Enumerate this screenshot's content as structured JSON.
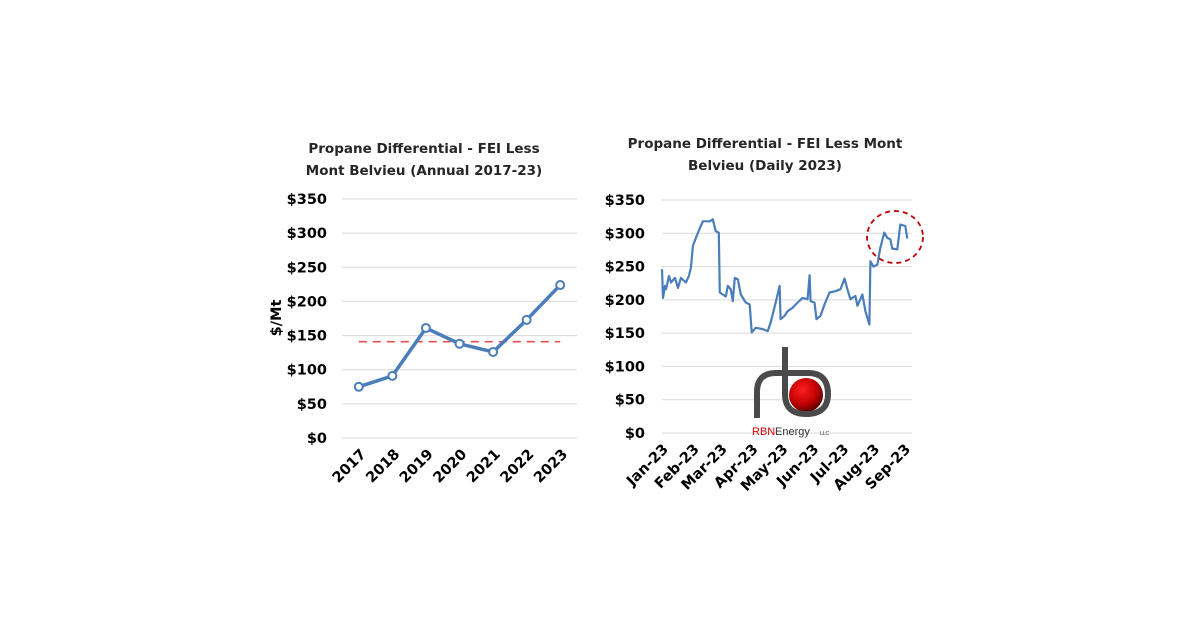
{
  "chart_data": [
    {
      "type": "line",
      "title_lines": [
        "Propane Differential - FEI Less",
        "Mont Belvieu (Annual 2017-23)"
      ],
      "xlabel": "",
      "ylabel": "$/Mt",
      "categories": [
        "2017",
        "2018",
        "2019",
        "2020",
        "2021",
        "2022",
        "2023"
      ],
      "values": [
        75,
        91,
        161,
        138,
        126,
        173,
        224
      ],
      "reference_line": {
        "value": 141,
        "style": "dashed",
        "color": "#e05050"
      },
      "ylim": [
        0,
        350
      ],
      "yticks": [
        "$0",
        "$50",
        "$100",
        "$150",
        "$200",
        "$250",
        "$300",
        "$350"
      ],
      "grid": true,
      "line_color": "#4a7ebb",
      "markers": "hollow-circle"
    },
    {
      "type": "line",
      "title_lines": [
        "Propane Differential - FEI Less Mont",
        "Belvieu (Daily 2023)"
      ],
      "xlabel": "",
      "ylabel": "",
      "ylim": [
        0,
        350
      ],
      "yticks": [
        "$0",
        "$50",
        "$100",
        "$150",
        "$200",
        "$250",
        "$300",
        "$350"
      ],
      "xticks": [
        "Jan-23",
        "Feb-23",
        "Mar-23",
        "Apr-23",
        "May-23",
        "Jun-23",
        "Jul-23",
        "Aug-23",
        "Sep-23"
      ],
      "grid": true,
      "line_color": "#4a7ebb",
      "annotation": {
        "type": "dashed-ellipse",
        "color": "#c00000",
        "around": "Aug-Sep 2023 peak"
      },
      "x": [
        "2023-01-01",
        "2023-01-02",
        "2023-01-04",
        "2023-01-05",
        "2023-01-08",
        "2023-01-10",
        "2023-01-14",
        "2023-01-17",
        "2023-01-20",
        "2023-01-25",
        "2023-01-28",
        "2023-01-30",
        "2023-02-01",
        "2023-02-04",
        "2023-02-08",
        "2023-02-11",
        "2023-02-18",
        "2023-02-21",
        "2023-02-24",
        "2023-02-27",
        "2023-02-28",
        "2023-03-06",
        "2023-03-08",
        "2023-03-11",
        "2023-03-13",
        "2023-03-15",
        "2023-03-18",
        "2023-03-21",
        "2023-03-26",
        "2023-03-30",
        "2023-04-01",
        "2023-04-05",
        "2023-04-12",
        "2023-04-17",
        "2023-04-20",
        "2023-04-25",
        "2023-04-29",
        "2023-04-30",
        "2023-05-04",
        "2023-05-07",
        "2023-05-12",
        "2023-05-17",
        "2023-05-22",
        "2023-05-27",
        "2023-05-29",
        "2023-05-30",
        "2023-06-03",
        "2023-06-05",
        "2023-06-09",
        "2023-06-13",
        "2023-06-18",
        "2023-06-24",
        "2023-06-29",
        "2023-07-03",
        "2023-07-06",
        "2023-07-09",
        "2023-07-14",
        "2023-07-16",
        "2023-07-21",
        "2023-07-24",
        "2023-07-28",
        "2023-07-29",
        "2023-08-01",
        "2023-08-05",
        "2023-08-08",
        "2023-08-12",
        "2023-08-15",
        "2023-08-18",
        "2023-08-20",
        "2023-08-25",
        "2023-08-28",
        "2023-09-02",
        "2023-09-04"
      ],
      "values": [
        246,
        203,
        221,
        216,
        236,
        226,
        233,
        218,
        233,
        226,
        236,
        248,
        281,
        293,
        308,
        318,
        318,
        321,
        303,
        301,
        211,
        205,
        221,
        216,
        198,
        233,
        231,
        208,
        196,
        193,
        151,
        158,
        156,
        153,
        166,
        196,
        221,
        171,
        176,
        183,
        188,
        196,
        203,
        201,
        237,
        198,
        196,
        171,
        176,
        193,
        211,
        213,
        216,
        232,
        216,
        201,
        206,
        191,
        208,
        183,
        163,
        258,
        250,
        253,
        278,
        301,
        293,
        291,
        277,
        276,
        313,
        311,
        292
      ]
    }
  ],
  "logo": {
    "name": "RBN",
    "text": "Energy",
    "suffix": "LLC",
    "accent_color": "#e00000"
  }
}
